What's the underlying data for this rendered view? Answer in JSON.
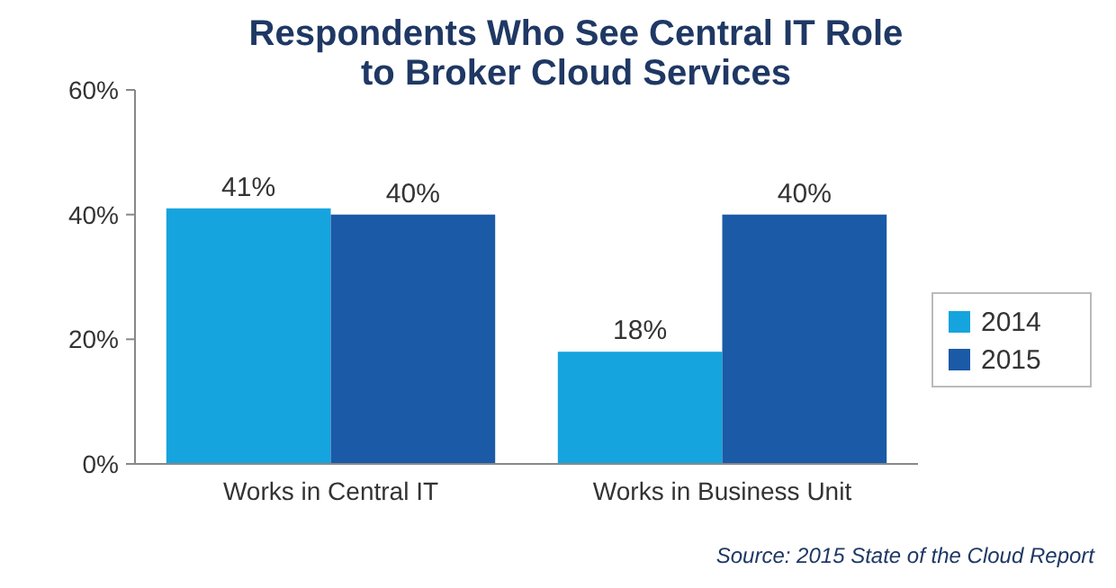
{
  "chart_data": {
    "type": "bar",
    "title": "Respondents Who See Central IT Role\nto Broker Cloud Services",
    "categories": [
      "Works in Central IT",
      "Works in Business Unit"
    ],
    "series": [
      {
        "name": "2014",
        "color": "#16a4de",
        "values": [
          41,
          18
        ]
      },
      {
        "name": "2015",
        "color": "#1a5aa6",
        "values": [
          40,
          40
        ]
      }
    ],
    "ylim": [
      0,
      60
    ],
    "yticks": [
      {
        "value": 0,
        "label": "0%"
      },
      {
        "value": 20,
        "label": "20%"
      },
      {
        "value": 40,
        "label": "40%"
      },
      {
        "value": 60,
        "label": "60%"
      }
    ],
    "value_labels": [
      [
        "41%",
        "18%"
      ],
      [
        "40%",
        "40%"
      ]
    ],
    "legend": "right",
    "grid": false,
    "annotations": [
      "Source: 2015 State of the Cloud Report"
    ]
  }
}
